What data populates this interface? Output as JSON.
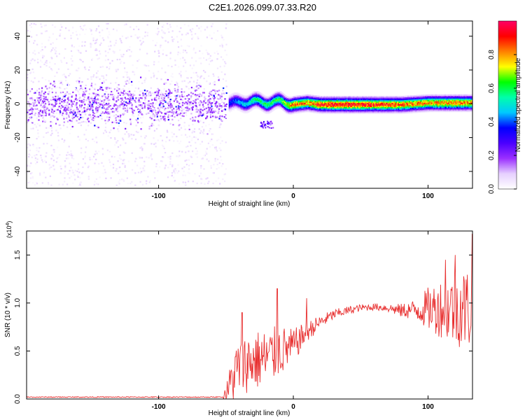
{
  "figure": {
    "title": "C2E1.2026.099.07.33.R20"
  },
  "chart_data": [
    {
      "type": "heatmap",
      "title": "C2E1.2026.099.07.33.R20",
      "xlabel": "Height of straight line (km)",
      "ylabel": "Frequency (Hz)",
      "xlim": [
        -198,
        133
      ],
      "ylim": [
        -50,
        49
      ],
      "x_ticks": [
        -100,
        0,
        100
      ],
      "x_tick_labels": [
        "-100",
        "0",
        "100"
      ],
      "y_ticks": [
        -40,
        -20,
        0,
        20,
        40
      ],
      "y_tick_labels": [
        "-40",
        "-20",
        "0",
        "20",
        "40"
      ],
      "grid": false,
      "colorbar": {
        "label": "Normalized spectral amplitude",
        "range": [
          0,
          1
        ],
        "ticks": [
          0,
          0.2,
          0.4,
          0.6,
          0.8
        ],
        "tick_labels": [
          "0.0",
          "0.2",
          "0.4",
          "0.6",
          "0.8"
        ],
        "colormap": [
          "#ffffff",
          "#e6d0ff",
          "#9b30ff",
          "#4b00ff",
          "#0000ff",
          "#00c8ff",
          "#00ffaa",
          "#00ff00",
          "#ffff00",
          "#ff8000",
          "#ff0000",
          "#ff0066"
        ]
      },
      "noise_region": {
        "x_range": [
          -198,
          -50
        ],
        "core_freq_halfwidth": 10,
        "scatter_freq_halfwidth": 48,
        "amplitude_core": 0.15,
        "amplitude_scatter": 0.03
      },
      "signal_band": [
        {
          "x": -48,
          "freq": 1,
          "amplitude": 0.35
        },
        {
          "x": -40,
          "freq": 1,
          "amplitude": 0.45
        },
        {
          "x": -30,
          "freq": 2,
          "amplitude": 0.55
        },
        {
          "x": -20,
          "freq": 1,
          "amplitude": 0.6
        },
        {
          "x": -10,
          "freq": 2,
          "amplitude": 0.6
        },
        {
          "x": 0,
          "freq": 0,
          "amplitude": 0.85
        },
        {
          "x": 10,
          "freq": 1,
          "amplitude": 0.8
        },
        {
          "x": 20,
          "freq": 0,
          "amplitude": 0.9
        },
        {
          "x": 40,
          "freq": 0,
          "amplitude": 0.95
        },
        {
          "x": 60,
          "freq": 0,
          "amplitude": 0.9
        },
        {
          "x": 80,
          "freq": 0,
          "amplitude": 0.85
        },
        {
          "x": 100,
          "freq": 1,
          "amplitude": 0.8
        },
        {
          "x": 120,
          "freq": 1,
          "amplitude": 0.85
        },
        {
          "x": 133,
          "freq": 1,
          "amplitude": 0.8
        }
      ],
      "secondary_feature": {
        "x_range": [
          -25,
          -15
        ],
        "freq_range": [
          -14,
          -10
        ],
        "amplitude": 0.2
      }
    },
    {
      "type": "line",
      "xlabel": "Height of straight line (km)",
      "ylabel": "SNR (10 * v/v)",
      "y_multiplier_label": "(x10^4)",
      "xlim": [
        -198,
        133
      ],
      "ylim": [
        0,
        1.75
      ],
      "x_ticks": [
        -100,
        0,
        100
      ],
      "x_tick_labels": [
        "-100",
        "0",
        "100"
      ],
      "y_ticks": [
        0,
        0.5,
        1.0,
        1.5
      ],
      "y_tick_labels": [
        "0.0",
        "0.5",
        "1.0",
        "1.5"
      ],
      "grid": false,
      "series": [
        {
          "color": "#e83030",
          "x": [
            -198,
            -150,
            -100,
            -60,
            -50,
            -45,
            -40,
            -30,
            -20,
            -10,
            0,
            10,
            20,
            30,
            40,
            50,
            60,
            70,
            80,
            90,
            100,
            110,
            120,
            133
          ],
          "y": [
            0.02,
            0.02,
            0.02,
            0.02,
            0.06,
            0.22,
            0.35,
            0.4,
            0.42,
            0.5,
            0.55,
            0.7,
            0.8,
            0.88,
            0.92,
            0.95,
            0.96,
            0.95,
            0.92,
            0.93,
            0.94,
            0.95,
            0.95,
            0.95
          ],
          "noise_amplitude": [
            0,
            0,
            0,
            0,
            0.08,
            0.3,
            0.35,
            0.35,
            0.35,
            0.3,
            0.2,
            0.12,
            0.08,
            0.06,
            0.05,
            0.04,
            0.04,
            0.05,
            0.08,
            0.12,
            0.25,
            0.35,
            0.45,
            0.5
          ],
          "peaks": [
            [
              -38,
              0.9
            ],
            [
              -12,
              1.15
            ],
            [
              10,
              1.05
            ],
            [
              113,
              1.45
            ],
            [
              120,
              1.5
            ],
            [
              133,
              1.72
            ]
          ]
        }
      ]
    }
  ]
}
